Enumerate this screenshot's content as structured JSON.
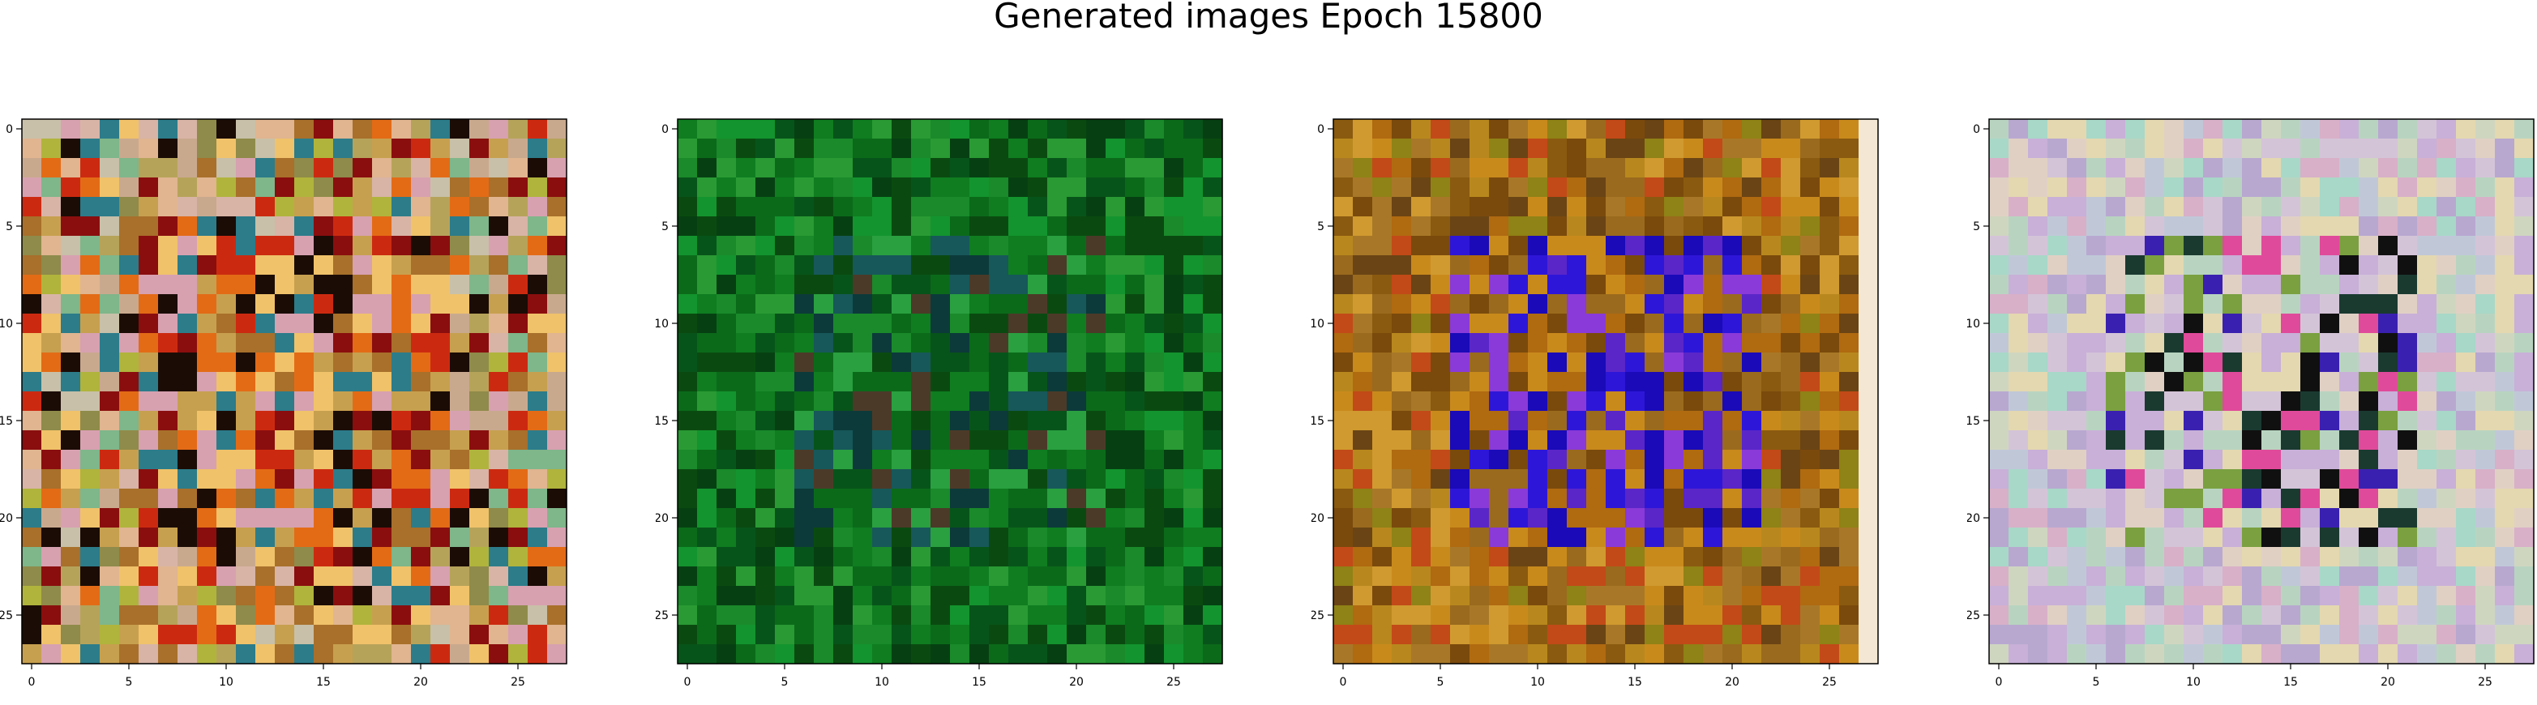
{
  "figure": {
    "title": "Generated images Epoch 15800"
  },
  "chart_data": [
    {
      "type": "heatmap",
      "grid": [
        28,
        28
      ],
      "xticks": [
        0,
        5,
        10,
        15,
        20,
        25
      ],
      "yticks": [
        0,
        5,
        10,
        15,
        20,
        25
      ],
      "tick_labels": [
        "0",
        "5",
        "10",
        "15",
        "20",
        "25"
      ],
      "palette": [
        "#c9a98e",
        "#d8b4a6",
        "#b6a35a",
        "#8f8b4a",
        "#c8c0a8",
        "#d7a1b0",
        "#e0b590",
        "#c7a04f",
        "#a8702b",
        "#cc2a10",
        "#8a0e0e",
        "#e36b16",
        "#2c7c8a",
        "#1b0c06",
        "#f0c26a",
        "#b0b43c",
        "#7fb68a"
      ],
      "center_palette": [
        "#cc2a10",
        "#8a0e0e",
        "#e36b16",
        "#c7a04f",
        "#1b0c06",
        "#f0c26a",
        "#a8702b",
        "#2c7c8a",
        "#d7a1b0"
      ],
      "seed": 11
    },
    {
      "type": "heatmap",
      "grid": [
        28,
        28
      ],
      "xticks": [
        0,
        5,
        10,
        15,
        20,
        25
      ],
      "yticks": [
        0,
        5,
        10,
        15,
        20,
        25
      ],
      "tick_labels": [
        "0",
        "5",
        "10",
        "15",
        "20",
        "25"
      ],
      "palette": [
        "#0b6a1a",
        "#0f7d20",
        "#07541a",
        "#1a8a2a",
        "#0a4a10",
        "#13942e",
        "#064012",
        "#2a9a34"
      ],
      "center_palette": [
        "#0b6a1a",
        "#0f7d20",
        "#0a4a10",
        "#1a8a2a",
        "#0c3a3a",
        "#17585a",
        "#2aa040",
        "#4c3a28",
        "#07541a"
      ],
      "seed": 29
    },
    {
      "type": "heatmap",
      "grid": [
        28,
        28
      ],
      "xticks": [
        0,
        5,
        10,
        15,
        20,
        25
      ],
      "yticks": [
        0,
        5,
        10,
        15,
        20,
        25
      ],
      "tick_labels": [
        "0",
        "5",
        "10",
        "15",
        "20",
        "25"
      ],
      "palette": [
        "#b06a10",
        "#c98a1c",
        "#8a5a10",
        "#a87828",
        "#7a4a0c",
        "#d09a30",
        "#9a6a1e",
        "#b8881e",
        "#c24a18",
        "#6a4414",
        "#8f8216"
      ],
      "center_palette": [
        "#2e16d8",
        "#5a26c8",
        "#1a0ab8",
        "#8a3ad8",
        "#b06a10",
        "#c98a1c",
        "#7a4a0c",
        "#9a6a1e"
      ],
      "right_column_color": "#f4e8d4",
      "seed": 47
    },
    {
      "type": "heatmap",
      "grid": [
        28,
        28
      ],
      "xticks": [
        0,
        5,
        10,
        15,
        20,
        25
      ],
      "yticks": [
        0,
        5,
        10,
        15,
        20,
        25
      ],
      "tick_labels": [
        "0",
        "5",
        "10",
        "15",
        "20",
        "25"
      ],
      "palette": [
        "#d4c4d8",
        "#c8b0d8",
        "#b8d4c0",
        "#e0d0c4",
        "#c0c8d8",
        "#d8b0c8",
        "#a8d8c8",
        "#e4d8b0",
        "#b8a8d0",
        "#cfd6c0"
      ],
      "center_palette": [
        "#d4c4d8",
        "#c8b0d8",
        "#b8d4c0",
        "#e0d0c4",
        "#101010",
        "#1a3a30",
        "#e04a9a",
        "#7aa040",
        "#3a20b0",
        "#c8b0d8",
        "#e4d8b0"
      ],
      "seed": 83
    }
  ]
}
